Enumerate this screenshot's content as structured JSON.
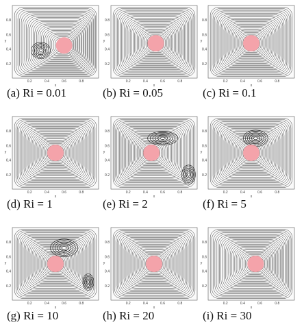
{
  "axes": {
    "x_label": "x",
    "y_label": "y",
    "ticks": [
      "0.2",
      "0.4",
      "0.6",
      "0.8"
    ]
  },
  "panels": [
    {
      "caption": "(a) Ri = 0.01"
    },
    {
      "caption": "(b) Ri = 0.05"
    },
    {
      "caption": "(c) Ri = 0.1"
    },
    {
      "caption": "(d) Ri = 1"
    },
    {
      "caption": "(e) Ri = 2"
    },
    {
      "caption": "(f) Ri = 5"
    },
    {
      "caption": "(g) Ri = 10"
    },
    {
      "caption": "(h) Ri = 20"
    },
    {
      "caption": "(i) Ri = 30"
    }
  ]
}
